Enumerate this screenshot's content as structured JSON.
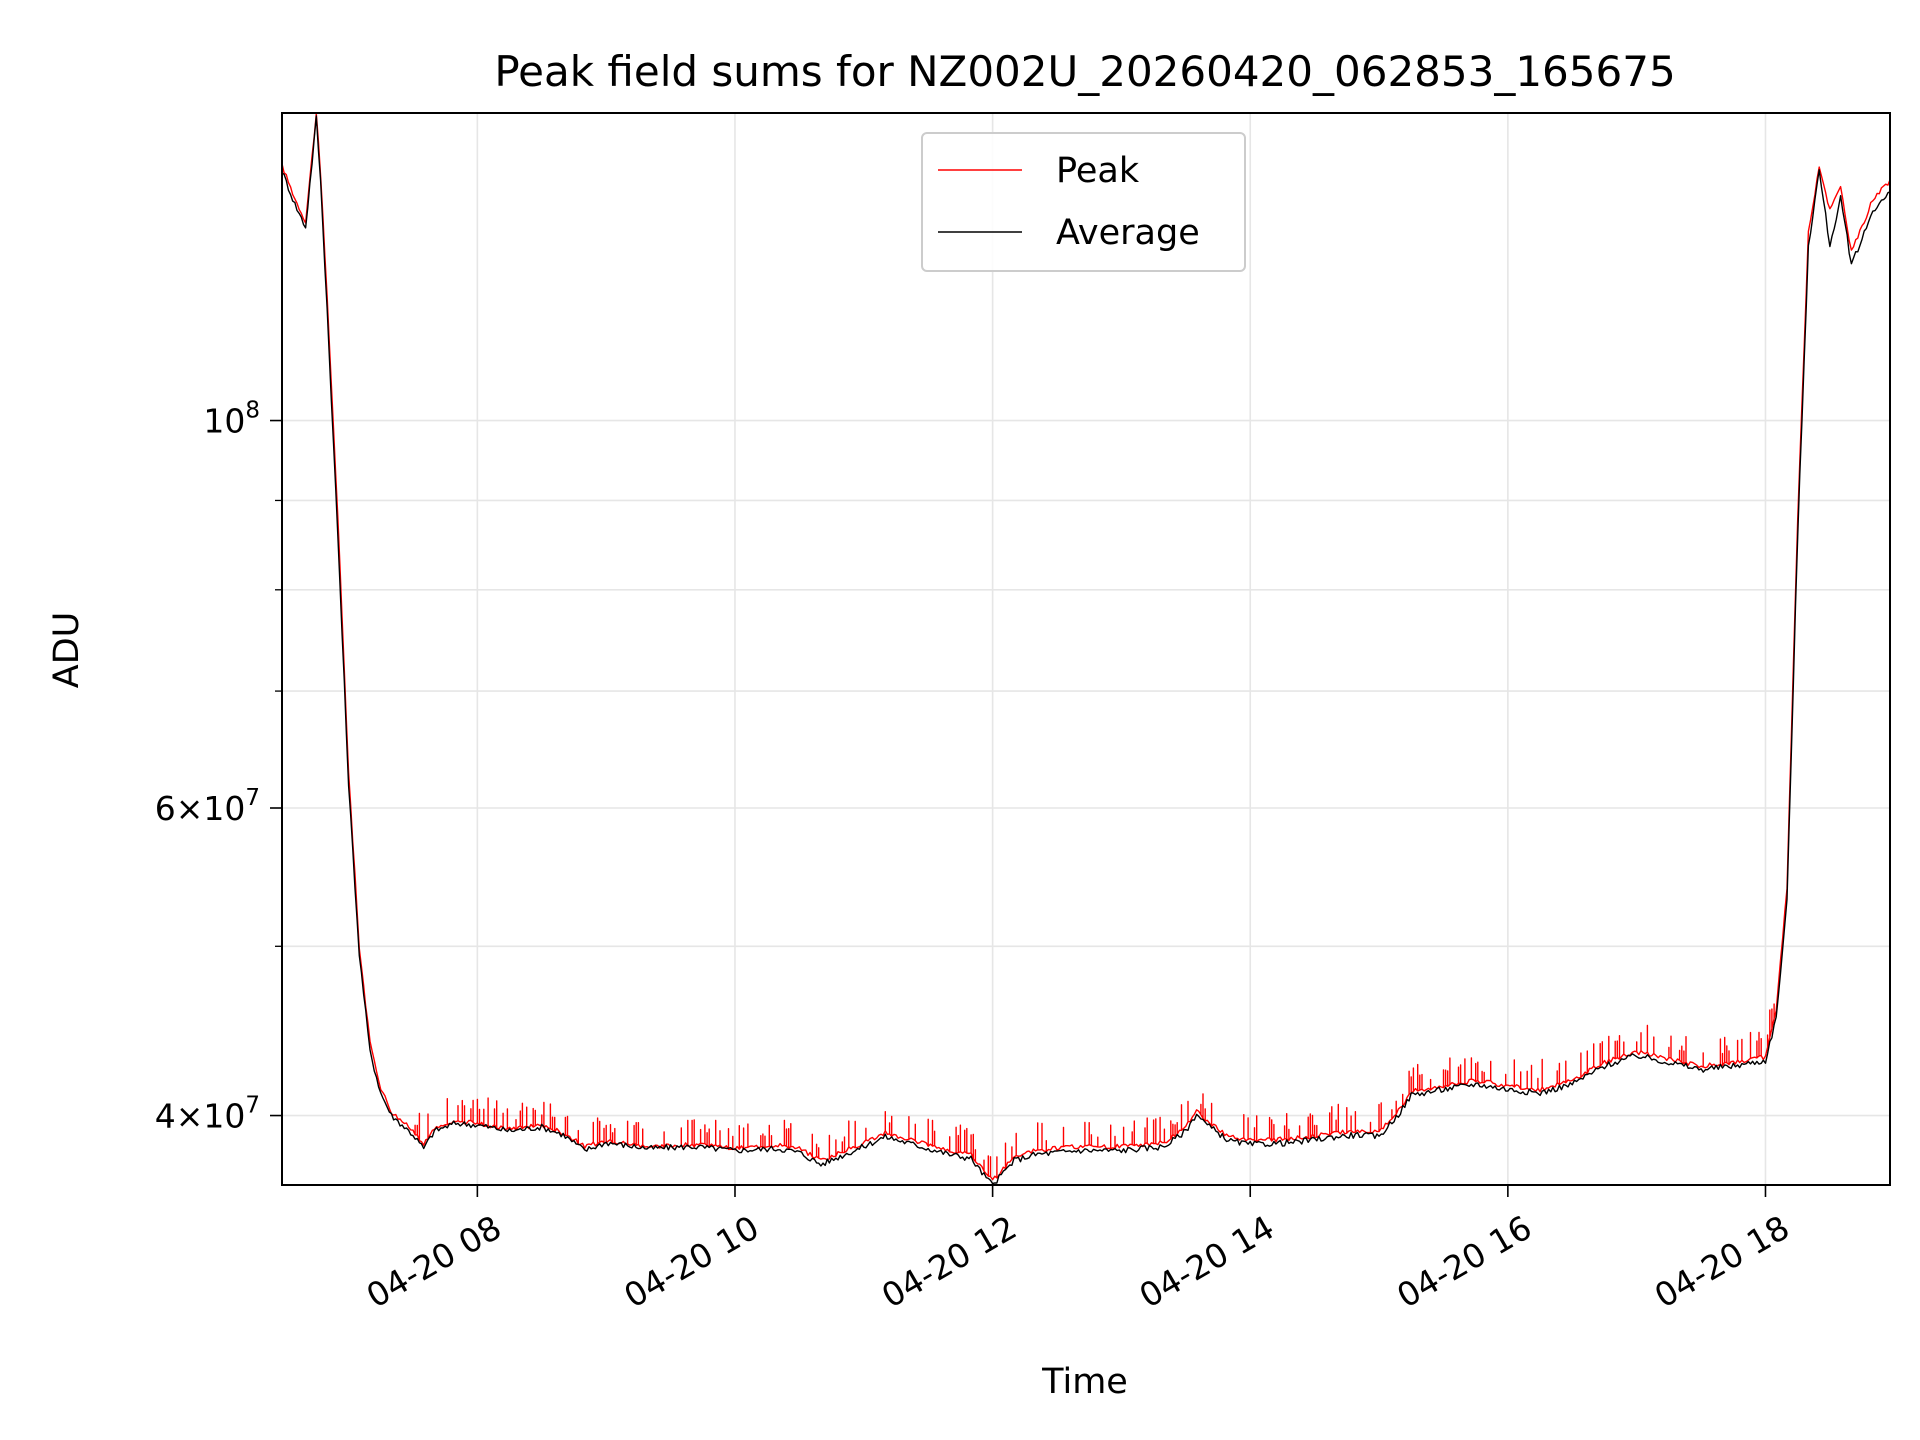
{
  "chart_data": {
    "type": "line",
    "title": "Peak field sums for NZ002U_20260420_062853_165675",
    "xlabel": "Time",
    "ylabel": "ADU",
    "yscale": "log",
    "ylim": [
      36500000,
      150000000
    ],
    "xlim": [
      "2026-04-20 06:29",
      "2026-04-20 18:58"
    ],
    "grid": true,
    "legend_position": "top-center",
    "x_ticks": [
      {
        "value": "2026-04-20 08:00",
        "label": "04-20 08"
      },
      {
        "value": "2026-04-20 10:00",
        "label": "04-20 10"
      },
      {
        "value": "2026-04-20 12:00",
        "label": "04-20 12"
      },
      {
        "value": "2026-04-20 14:00",
        "label": "04-20 14"
      },
      {
        "value": "2026-04-20 16:00",
        "label": "04-20 16"
      },
      {
        "value": "2026-04-20 18:00",
        "label": "04-20 18"
      }
    ],
    "y_ticks": [
      {
        "value": 40000000,
        "base": "4×10",
        "exp": "7"
      },
      {
        "value": 60000000,
        "base": "6×10",
        "exp": "7"
      },
      {
        "value": 100000000,
        "base": "10",
        "exp": "8"
      }
    ],
    "y_minor_ticks": [
      50000000,
      70000000,
      80000000,
      90000000
    ],
    "series": [
      {
        "name": "Peak",
        "color": "#ff0000",
        "style": "spiky",
        "x": [
          "2026-04-20 06:29",
          "2026-04-20 06:35",
          "2026-04-20 06:40",
          "2026-04-20 06:45",
          "2026-04-20 06:47",
          "2026-04-20 06:50",
          "2026-04-20 06:55",
          "2026-04-20 07:00",
          "2026-04-20 07:05",
          "2026-04-20 07:10",
          "2026-04-20 07:15",
          "2026-04-20 07:20",
          "2026-04-20 07:25",
          "2026-04-20 07:30",
          "2026-04-20 07:35",
          "2026-04-20 07:40",
          "2026-04-20 07:45",
          "2026-04-20 07:50",
          "2026-04-20 08:00",
          "2026-04-20 08:15",
          "2026-04-20 08:30",
          "2026-04-20 08:40",
          "2026-04-20 08:50",
          "2026-04-20 09:00",
          "2026-04-20 09:20",
          "2026-04-20 09:40",
          "2026-04-20 10:00",
          "2026-04-20 10:20",
          "2026-04-20 10:30",
          "2026-04-20 10:40",
          "2026-04-20 11:00",
          "2026-04-20 11:10",
          "2026-04-20 11:20",
          "2026-04-20 11:40",
          "2026-04-20 11:50",
          "2026-04-20 11:55",
          "2026-04-20 12:00",
          "2026-04-20 12:10",
          "2026-04-20 12:20",
          "2026-04-20 12:40",
          "2026-04-20 13:00",
          "2026-04-20 13:20",
          "2026-04-20 13:30",
          "2026-04-20 13:35",
          "2026-04-20 13:40",
          "2026-04-20 13:50",
          "2026-04-20 14:00",
          "2026-04-20 14:20",
          "2026-04-20 14:40",
          "2026-04-20 14:50",
          "2026-04-20 15:00",
          "2026-04-20 15:10",
          "2026-04-20 15:15",
          "2026-04-20 15:30",
          "2026-04-20 15:45",
          "2026-04-20 16:00",
          "2026-04-20 16:15",
          "2026-04-20 16:30",
          "2026-04-20 16:45",
          "2026-04-20 17:00",
          "2026-04-20 17:15",
          "2026-04-20 17:30",
          "2026-04-20 17:45",
          "2026-04-20 18:00",
          "2026-04-20 18:05",
          "2026-04-20 18:10",
          "2026-04-20 18:15",
          "2026-04-20 18:20",
          "2026-04-20 18:25",
          "2026-04-20 18:30",
          "2026-04-20 18:35",
          "2026-04-20 18:40",
          "2026-04-20 18:45",
          "2026-04-20 18:50",
          "2026-04-20 18:58"
        ],
        "values": [
          140000000,
          134000000,
          130000000,
          150000000,
          138000000,
          118000000,
          88000000,
          63000000,
          50000000,
          44000000,
          41500000,
          40200000,
          39700000,
          39200000,
          38500000,
          39300000,
          39500000,
          39700000,
          39600000,
          39300000,
          39500000,
          39100000,
          38400000,
          38700000,
          38400000,
          38500000,
          38300000,
          38500000,
          38300000,
          37700000,
          38600000,
          39100000,
          38800000,
          38200000,
          38000000,
          37300000,
          36700000,
          37900000,
          38200000,
          38400000,
          38400000,
          38600000,
          39400000,
          40300000,
          39700000,
          38900000,
          38700000,
          38800000,
          39100000,
          39200000,
          39100000,
          40400000,
          41300000,
          41600000,
          41900000,
          41600000,
          41400000,
          41900000,
          42900000,
          43500000,
          43100000,
          42700000,
          42900000,
          43200000,
          46000000,
          54000000,
          88000000,
          128000000,
          140000000,
          132000000,
          136000000,
          125000000,
          129000000,
          134000000,
          137000000
        ]
      },
      {
        "name": "Average",
        "color": "#000000",
        "style": "smooth",
        "x": [
          "2026-04-20 06:29",
          "2026-04-20 06:35",
          "2026-04-20 06:40",
          "2026-04-20 06:45",
          "2026-04-20 06:47",
          "2026-04-20 06:50",
          "2026-04-20 06:55",
          "2026-04-20 07:00",
          "2026-04-20 07:05",
          "2026-04-20 07:10",
          "2026-04-20 07:15",
          "2026-04-20 07:20",
          "2026-04-20 07:25",
          "2026-04-20 07:30",
          "2026-04-20 07:35",
          "2026-04-20 07:40",
          "2026-04-20 07:45",
          "2026-04-20 07:50",
          "2026-04-20 08:00",
          "2026-04-20 08:15",
          "2026-04-20 08:30",
          "2026-04-20 08:40",
          "2026-04-20 08:50",
          "2026-04-20 09:00",
          "2026-04-20 09:20",
          "2026-04-20 09:40",
          "2026-04-20 10:00",
          "2026-04-20 10:20",
          "2026-04-20 10:30",
          "2026-04-20 10:40",
          "2026-04-20 11:00",
          "2026-04-20 11:10",
          "2026-04-20 11:20",
          "2026-04-20 11:40",
          "2026-04-20 11:50",
          "2026-04-20 11:55",
          "2026-04-20 12:00",
          "2026-04-20 12:10",
          "2026-04-20 12:20",
          "2026-04-20 12:40",
          "2026-04-20 13:00",
          "2026-04-20 13:20",
          "2026-04-20 13:30",
          "2026-04-20 13:35",
          "2026-04-20 13:40",
          "2026-04-20 13:50",
          "2026-04-20 14:00",
          "2026-04-20 14:20",
          "2026-04-20 14:40",
          "2026-04-20 14:50",
          "2026-04-20 15:00",
          "2026-04-20 15:10",
          "2026-04-20 15:15",
          "2026-04-20 15:30",
          "2026-04-20 15:45",
          "2026-04-20 16:00",
          "2026-04-20 16:15",
          "2026-04-20 16:30",
          "2026-04-20 16:45",
          "2026-04-20 17:00",
          "2026-04-20 17:15",
          "2026-04-20 17:30",
          "2026-04-20 17:45",
          "2026-04-20 18:00",
          "2026-04-20 18:05",
          "2026-04-20 18:10",
          "2026-04-20 18:15",
          "2026-04-20 18:20",
          "2026-04-20 18:25",
          "2026-04-20 18:30",
          "2026-04-20 18:35",
          "2026-04-20 18:40",
          "2026-04-20 18:45",
          "2026-04-20 18:50",
          "2026-04-20 18:58"
        ],
        "values": [
          139000000,
          133000000,
          129000000,
          149000000,
          137000000,
          116000000,
          86000000,
          62000000,
          49500000,
          43500000,
          41200000,
          40000000,
          39500000,
          39000000,
          38300000,
          39200000,
          39400000,
          39600000,
          39500000,
          39200000,
          39400000,
          39000000,
          38200000,
          38600000,
          38300000,
          38400000,
          38200000,
          38300000,
          38100000,
          37500000,
          38400000,
          38900000,
          38600000,
          38000000,
          37800000,
          37100000,
          36500000,
          37700000,
          38000000,
          38200000,
          38200000,
          38400000,
          39200000,
          40100000,
          39500000,
          38700000,
          38500000,
          38600000,
          38900000,
          39000000,
          38900000,
          40200000,
          41100000,
          41400000,
          41700000,
          41400000,
          41200000,
          41700000,
          42700000,
          43300000,
          42900000,
          42500000,
          42700000,
          43000000,
          45500000,
          53000000,
          86000000,
          126000000,
          139000000,
          126000000,
          134000000,
          123000000,
          127000000,
          132000000,
          135000000
        ]
      }
    ]
  }
}
